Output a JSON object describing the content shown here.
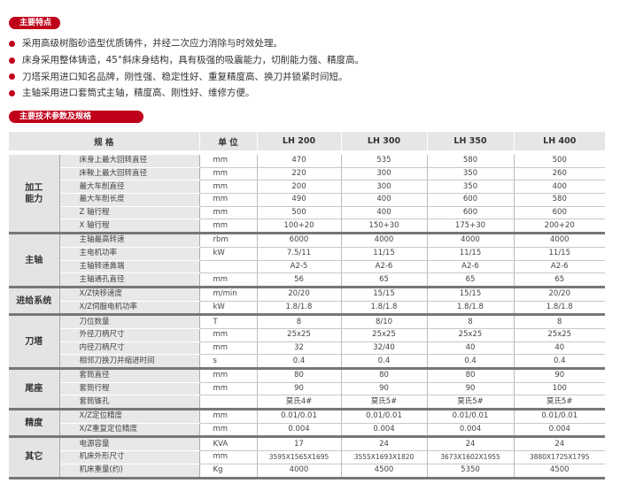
{
  "features": {
    "title": "主要特点",
    "items": [
      "采用高级树脂砂造型优质铸件，并经二次应力消除与时效处理。",
      "床身采用整体铸造，45°斜床身结构，具有极强的吸震能力，切削能力强、精度高。",
      "刀塔采用进口知名品牌，刚性强、稳定性好、重复精度高、换刀并锁紧时间短。",
      "主轴采用进口套筒式主轴，精度高、刚性好、维修方便。"
    ]
  },
  "specs": {
    "title": "主要技术参数及规格",
    "headers": [
      "规 格",
      "单 位",
      "LH 200",
      "LH 300",
      "LH 350",
      "LH 400"
    ],
    "groups": [
      {
        "name": "加工\n能力",
        "rows": [
          [
            "床身上最大回转直径",
            "mm",
            "470",
            "535",
            "580",
            "500"
          ],
          [
            "床鞍上最大回转直径",
            "mm",
            "220",
            "300",
            "350",
            "260"
          ],
          [
            "最大车削直径",
            "mm",
            "200",
            "300",
            "350",
            "400"
          ],
          [
            "最大车削长度",
            "mm",
            "490",
            "400",
            "600",
            "580"
          ],
          [
            "Z 轴行程",
            "mm",
            "500",
            "400",
            "600",
            "600"
          ],
          [
            "X 轴行程",
            "mm",
            "100+20",
            "150+30",
            "175+30",
            "200+20"
          ]
        ]
      },
      {
        "name": "主轴",
        "rows": [
          [
            "主轴最高转速",
            "rbm",
            "6000",
            "4000",
            "4000",
            "4000"
          ],
          [
            "主电机功率",
            "kW",
            "7.5/11",
            "11/15",
            "11/15",
            "11/15"
          ],
          [
            "主轴转速鼻端",
            "",
            "A2-5",
            "A2-6",
            "A2-6",
            "A2-6"
          ],
          [
            "主轴通孔直径",
            "mm",
            "56",
            "65",
            "65",
            "65"
          ]
        ]
      },
      {
        "name": "进给系统",
        "rows": [
          [
            "X/Z快移速度",
            "m/min",
            "20/20",
            "15/15",
            "15/15",
            "20/20"
          ],
          [
            "X/Z伺服电机功率",
            "kW",
            "1.8/1.8",
            "1.8/1.8",
            "1.8/1.8",
            "1.8/1.8"
          ]
        ]
      },
      {
        "name": "刀塔",
        "rows": [
          [
            "刀位数量",
            "T",
            "8",
            "8/10",
            "8",
            "8"
          ],
          [
            "外径刀柄尺寸",
            "mm",
            "25x25",
            "25x25",
            "25x25",
            "25x25"
          ],
          [
            "内径刀柄尺寸",
            "mm",
            "32",
            "32/40",
            "40",
            "40"
          ],
          [
            "相邻刀换刀并缩进时间",
            "s",
            "0.4",
            "0.4",
            "0.4",
            "0.4"
          ]
        ]
      },
      {
        "name": "尾座",
        "rows": [
          [
            "套筒直径",
            "mm",
            "80",
            "80",
            "80",
            "90"
          ],
          [
            "套筒行程",
            "mm",
            "90",
            "90",
            "90",
            "100"
          ],
          [
            "套筒锥孔",
            "",
            "莫氏4#",
            "莫氏5#",
            "莫氏5#",
            "莫氏5#"
          ]
        ]
      },
      {
        "name": "精度",
        "rows": [
          [
            "X/Z定位精度",
            "mm",
            "0.01/0.01",
            "0.01/0.01",
            "0.01/0.01",
            "0.01/0.01"
          ],
          [
            "X/Z重复定位精度",
            "mm",
            "0.004",
            "0.004",
            "0.004",
            "0.004"
          ]
        ]
      },
      {
        "name": "其它",
        "rows": [
          [
            "电源容量",
            "KVA",
            "17",
            "24",
            "24",
            "24"
          ],
          [
            "机床外形尺寸",
            "mm",
            "3595X1565X1695",
            "3555X1693X1820",
            "3673X1602X1955",
            "3880X1725X1795"
          ],
          [
            "机床重量(约)",
            "Kg",
            "4000",
            "4500",
            "5350",
            "4500"
          ]
        ]
      }
    ]
  },
  "colors": {
    "accent": "#c0001a"
  }
}
